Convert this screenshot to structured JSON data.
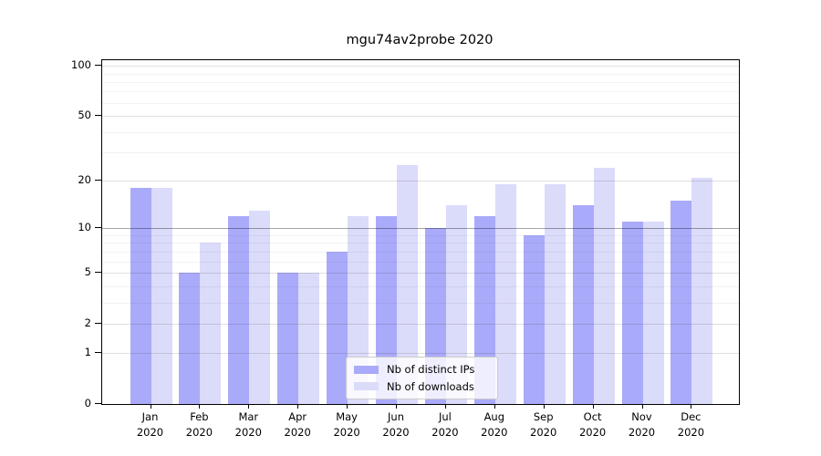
{
  "title": "mgu74av2probe 2020",
  "chart_data": {
    "type": "bar",
    "categories": [
      "Jan",
      "Feb",
      "Mar",
      "Apr",
      "May",
      "Jun",
      "Jul",
      "Aug",
      "Sep",
      "Oct",
      "Nov",
      "Dec"
    ],
    "category_year": "2020",
    "series": [
      {
        "name": "Nb of distinct IPs",
        "color": "#aaaafa",
        "values": [
          18,
          5,
          12,
          5,
          7,
          12,
          10,
          12,
          9,
          14,
          11,
          15
        ]
      },
      {
        "name": "Nb of downloads",
        "color": "#dbdbfa",
        "values": [
          18,
          8,
          13,
          5,
          12,
          25,
          14,
          19,
          19,
          24,
          11,
          21
        ]
      }
    ],
    "scale": "log1p",
    "ylim": [
      0,
      108
    ],
    "yticks": [
      0,
      1,
      2,
      5,
      10,
      20,
      50,
      100
    ],
    "minor_yticks": [
      3,
      4,
      6,
      7,
      8,
      9,
      30,
      40,
      60,
      70,
      80,
      90
    ],
    "grid": true,
    "legend_position": "lower center"
  },
  "colors": {
    "bar_ips": "#aaaafa",
    "bar_downloads": "#dbdbfa",
    "grid_major": "rgba(0,0,0,0.12)",
    "grid_minor": "rgba(0,0,0,0.05)",
    "grid_emphasis_10": "rgba(0,0,0,0.35)",
    "axis_frame": "#000000",
    "legend_border": "#cccccc"
  }
}
